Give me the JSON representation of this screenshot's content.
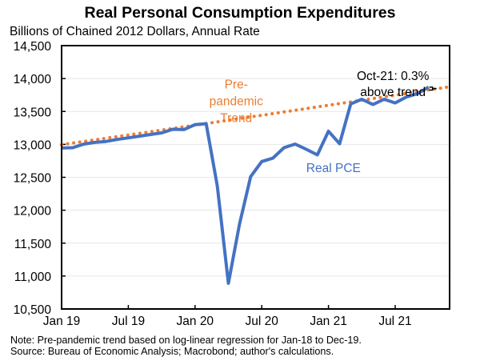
{
  "chart_data": {
    "type": "line",
    "title": "Real Personal Consumption Expenditures",
    "subtitle": "Billions of Chained 2012 Dollars, Annual Rate",
    "xlabel": "",
    "ylabel": "",
    "ylim": [
      10500,
      14500
    ],
    "yticks": [
      10500,
      11000,
      11500,
      12000,
      12500,
      13000,
      13500,
      14000,
      14500
    ],
    "ytick_labels": [
      "10,500",
      "11,000",
      "11,500",
      "12,000",
      "12,500",
      "13,000",
      "13,500",
      "14,000",
      "14,500"
    ],
    "xlim_months": [
      "Jan-19",
      "Dec-21"
    ],
    "xticks": [
      {
        "label": "Jan 19",
        "month_index": 0
      },
      {
        "label": "Jul 19",
        "month_index": 6
      },
      {
        "label": "Jan 20",
        "month_index": 12
      },
      {
        "label": "Jul 20",
        "month_index": 18
      },
      {
        "label": "Jan 21",
        "month_index": 24
      },
      {
        "label": "Jul 21",
        "month_index": 30
      }
    ],
    "grid": "horizontal",
    "x": [
      "Jan-19",
      "Feb-19",
      "Mar-19",
      "Apr-19",
      "May-19",
      "Jun-19",
      "Jul-19",
      "Aug-19",
      "Sep-19",
      "Oct-19",
      "Nov-19",
      "Dec-19",
      "Jan-20",
      "Feb-20",
      "Mar-20",
      "Apr-20",
      "May-20",
      "Jun-20",
      "Jul-20",
      "Aug-20",
      "Sep-20",
      "Oct-20",
      "Nov-20",
      "Dec-20",
      "Jan-21",
      "Feb-21",
      "Mar-21",
      "Apr-21",
      "May-21",
      "Jun-21",
      "Jul-21",
      "Aug-21",
      "Sep-21",
      "Oct-21"
    ],
    "series": [
      {
        "name": "Real PCE",
        "color": "#4472C4",
        "style": "solid",
        "values": [
          12945,
          12950,
          13005,
          13030,
          13045,
          13075,
          13100,
          13125,
          13150,
          13175,
          13230,
          13225,
          13300,
          13315,
          12370,
          10890,
          11790,
          12510,
          12740,
          12790,
          12950,
          13005,
          12925,
          12840,
          13200,
          13010,
          13615,
          13685,
          13605,
          13685,
          13630,
          13720,
          13770,
          13870
        ]
      },
      {
        "name": "Pre-pandemic Trend",
        "color": "#ED7D31",
        "style": "dotted",
        "model": "log-linear",
        "start_month": "Jan-19",
        "end_month": "Dec-21",
        "start_value": 12996,
        "monthly_growth_log": 0.001876
      }
    ],
    "annotations": [
      {
        "text": "Real PCE",
        "color": "#4472C4",
        "anchor_month_index": 22,
        "anchor_value": 12580
      },
      {
        "lines": [
          "Pre-",
          "pandemic",
          "Trend"
        ],
        "color": "#ED7D31",
        "anchor_month_index": 15.7,
        "anchor_value": 13850
      },
      {
        "lines": [
          "Oct-21: 0.3%",
          "above trend"
        ],
        "color": "#000000",
        "anchor_month_index": 29.8,
        "anchor_value": 13980
      }
    ],
    "notes": [
      "Note: Pre-pandemic trend based on log-linear regression for Jan-18 to Dec-19.",
      "Source: Bureau of Economic Analysis; Macrobond; author's calculations."
    ]
  }
}
